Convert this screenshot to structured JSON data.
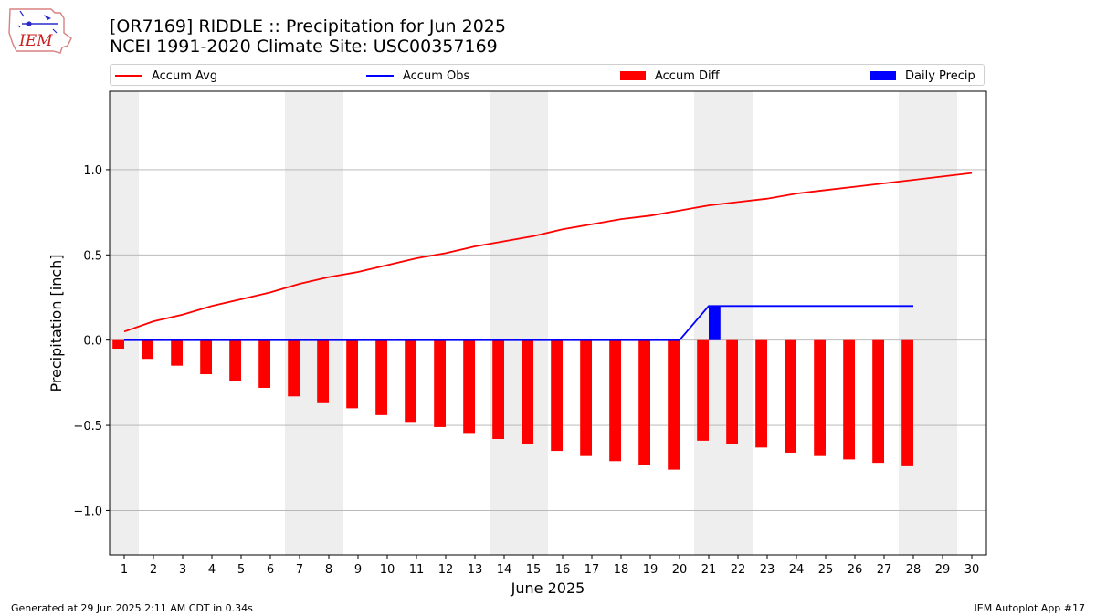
{
  "header": {
    "title_line1": "[OR7169] RIDDLE :: Precipitation for Jun 2025",
    "title_line2": "NCEI 1991-2020 Climate Site: USC00357169",
    "logo_text": "IEM"
  },
  "footer": {
    "left": "Generated at 29 Jun 2025 2:11 AM CDT in 0.34s",
    "right": "IEM Autoplot App #17"
  },
  "colors": {
    "avg": "#ff0000",
    "obs": "#0000ff",
    "diff": "#ff0000",
    "daily": "#0000ff",
    "weekend": "#eeeeee",
    "grid": "#b0b0b0"
  },
  "chart_data": {
    "type": "bar",
    "xlabel": "June 2025",
    "ylabel": "Precipitation [inch]",
    "xlim": [
      0.5,
      30.5
    ],
    "ylim": [
      -1.26,
      1.46
    ],
    "yticks": [
      -1.0,
      -0.5,
      0.0,
      0.5,
      1.0
    ],
    "ytick_labels": [
      "−1.0",
      "−0.5",
      "0.0",
      "0.5",
      "1.0"
    ],
    "grid": "horizontal",
    "legend_position": "top",
    "days": [
      1,
      2,
      3,
      4,
      5,
      6,
      7,
      8,
      9,
      10,
      11,
      12,
      13,
      14,
      15,
      16,
      17,
      18,
      19,
      20,
      21,
      22,
      23,
      24,
      25,
      26,
      27,
      28,
      29,
      30
    ],
    "xtick_labels": [
      "1",
      "2",
      "3",
      "4",
      "5",
      "6",
      "7",
      "8",
      "9",
      "10",
      "11",
      "12",
      "13",
      "14",
      "15",
      "16",
      "17",
      "18",
      "19",
      "20",
      "21",
      "22",
      "23",
      "24",
      "25",
      "26",
      "27",
      "28",
      "29",
      "30"
    ],
    "weekend_spans": [
      [
        0.5,
        1.5
      ],
      [
        6.5,
        8.5
      ],
      [
        13.5,
        15.5
      ],
      [
        20.5,
        22.5
      ],
      [
        27.5,
        29.5
      ]
    ],
    "series": [
      {
        "name": "Accum Avg",
        "type": "line",
        "x": [
          1,
          2,
          3,
          4,
          5,
          6,
          7,
          8,
          9,
          10,
          11,
          12,
          13,
          14,
          15,
          16,
          17,
          18,
          19,
          20,
          21,
          22,
          23,
          24,
          25,
          26,
          27,
          28,
          29,
          30
        ],
        "values": [
          0.05,
          0.11,
          0.15,
          0.2,
          0.24,
          0.28,
          0.33,
          0.37,
          0.4,
          0.44,
          0.48,
          0.51,
          0.55,
          0.58,
          0.61,
          0.65,
          0.68,
          0.71,
          0.73,
          0.76,
          0.79,
          0.81,
          0.83,
          0.86,
          0.88,
          0.9,
          0.92,
          0.94,
          0.96,
          0.98
        ]
      },
      {
        "name": "Accum Obs",
        "type": "line",
        "x": [
          1,
          2,
          3,
          4,
          5,
          6,
          7,
          8,
          9,
          10,
          11,
          12,
          13,
          14,
          15,
          16,
          17,
          18,
          19,
          20,
          21,
          22,
          23,
          24,
          25,
          26,
          27,
          28
        ],
        "values": [
          0,
          0,
          0,
          0,
          0,
          0,
          0,
          0,
          0,
          0,
          0,
          0,
          0,
          0,
          0,
          0,
          0,
          0,
          0,
          0,
          0.2,
          0.2,
          0.2,
          0.2,
          0.2,
          0.2,
          0.2,
          0.2
        ]
      },
      {
        "name": "Accum Diff",
        "type": "bar",
        "x": [
          1,
          2,
          3,
          4,
          5,
          6,
          7,
          8,
          9,
          10,
          11,
          12,
          13,
          14,
          15,
          16,
          17,
          18,
          19,
          20,
          21,
          22,
          23,
          24,
          25,
          26,
          27,
          28
        ],
        "values": [
          -0.05,
          -0.11,
          -0.15,
          -0.2,
          -0.24,
          -0.28,
          -0.33,
          -0.37,
          -0.4,
          -0.44,
          -0.48,
          -0.51,
          -0.55,
          -0.58,
          -0.61,
          -0.65,
          -0.68,
          -0.71,
          -0.73,
          -0.76,
          -0.59,
          -0.61,
          -0.63,
          -0.66,
          -0.68,
          -0.7,
          -0.72,
          -0.74
        ]
      },
      {
        "name": "Daily Precip",
        "type": "bar",
        "x": [
          1,
          2,
          3,
          4,
          5,
          6,
          7,
          8,
          9,
          10,
          11,
          12,
          13,
          14,
          15,
          16,
          17,
          18,
          19,
          20,
          21,
          22,
          23,
          24,
          25,
          26,
          27,
          28
        ],
        "values": [
          0,
          0,
          0,
          0,
          0,
          0,
          0,
          0,
          0,
          0,
          0,
          0,
          0,
          0,
          0,
          0,
          0,
          0,
          0,
          0,
          0.2,
          0,
          0,
          0,
          0,
          0,
          0,
          0
        ]
      }
    ]
  }
}
